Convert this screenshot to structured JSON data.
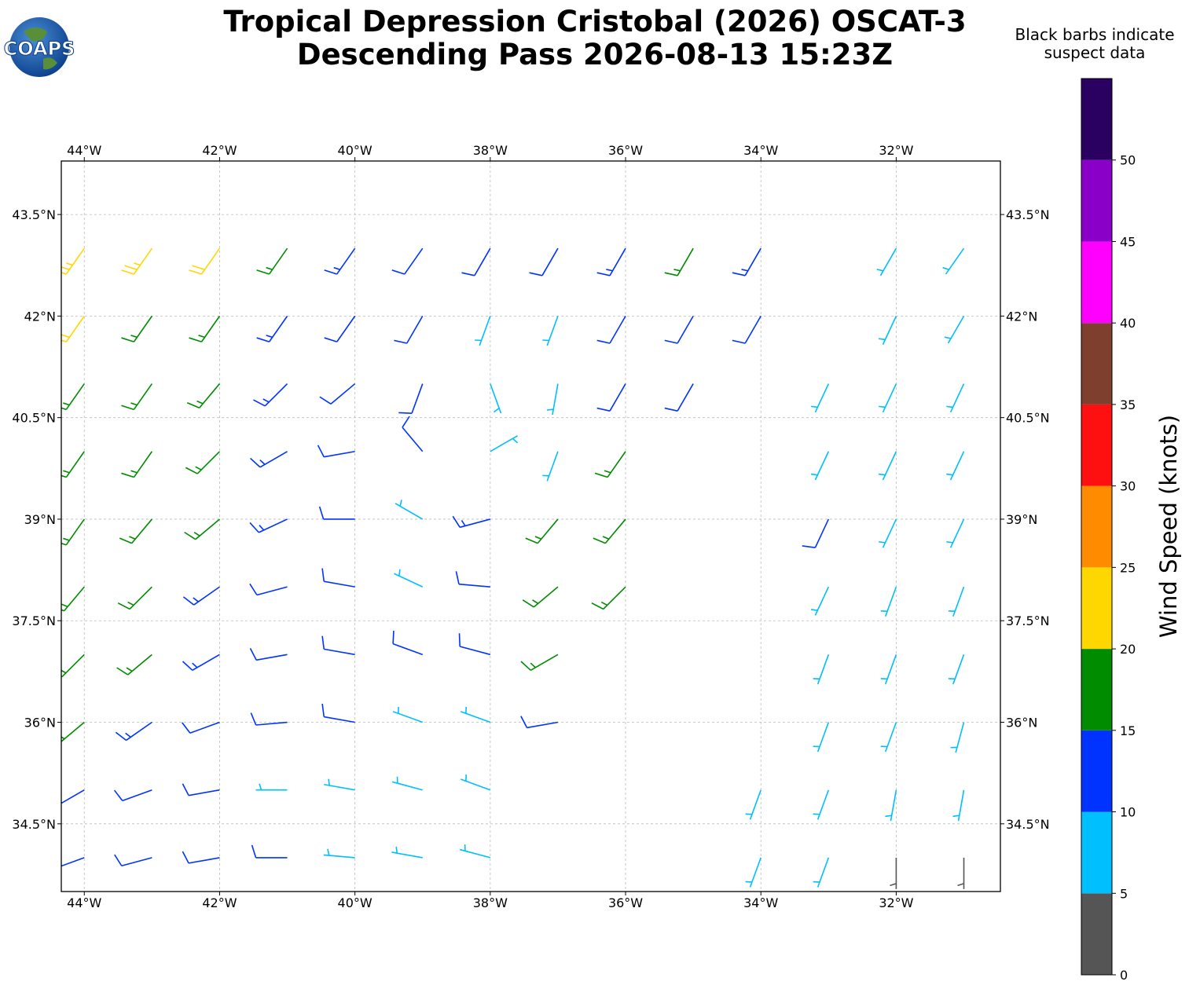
{
  "title_line1": "Tropical Depression Cristobal (2026) OSCAT-3",
  "title_line2": "Descending Pass 2026-08-13 15:23Z",
  "note_line1": "Black barbs indicate",
  "note_line2": "suspect data",
  "logo_text": "COAPS",
  "map": {
    "xlim": [
      -44.34,
      -30.46
    ],
    "ylim": [
      33.5,
      44.29
    ],
    "grid": true,
    "xticks": [
      {
        "value": -44,
        "label": "44°W"
      },
      {
        "value": -42,
        "label": "42°W"
      },
      {
        "value": -40,
        "label": "40°W"
      },
      {
        "value": -38,
        "label": "38°W"
      },
      {
        "value": -36,
        "label": "36°W"
      },
      {
        "value": -34,
        "label": "34°W"
      },
      {
        "value": -32,
        "label": "32°W"
      }
    ],
    "yticks": [
      {
        "value": 34.5,
        "label": "34.5°N"
      },
      {
        "value": 36,
        "label": "36°N"
      },
      {
        "value": 37.5,
        "label": "37.5°N"
      },
      {
        "value": 39,
        "label": "39°N"
      },
      {
        "value": 40.5,
        "label": "40.5°N"
      },
      {
        "value": 42,
        "label": "42°N"
      },
      {
        "value": 43.5,
        "label": "43.5°N"
      }
    ],
    "barbs": {
      "lon": [
        -44,
        -43,
        -42,
        -41,
        -40,
        -39,
        -38,
        -37,
        -36,
        -35,
        -34,
        -33,
        -32,
        -31
      ],
      "lat": [
        34,
        35,
        36,
        37,
        38,
        39,
        40,
        41,
        42,
        43
      ],
      "speed": [
        [
          12,
          12,
          11,
          10,
          9,
          8,
          7,
          null,
          null,
          null,
          8,
          7,
          4,
          4
        ],
        [
          13,
          12,
          11,
          9,
          8,
          8,
          8,
          null,
          null,
          null,
          8,
          7,
          7,
          6
        ],
        [
          17,
          14,
          12,
          11,
          10,
          9,
          9,
          10,
          null,
          null,
          null,
          7,
          7,
          7
        ],
        [
          18,
          16,
          14,
          12,
          12,
          11,
          11,
          17,
          null,
          null,
          null,
          8,
          8,
          7
        ],
        [
          19,
          17,
          14,
          12,
          10,
          9,
          12,
          17,
          16,
          null,
          null,
          9,
          8,
          7
        ],
        [
          19,
          17,
          15,
          13,
          11,
          9,
          14,
          17,
          18,
          null,
          null,
          11,
          8,
          7
        ],
        [
          18,
          17,
          15,
          13,
          12,
          10,
          8,
          9,
          17,
          null,
          null,
          9,
          8,
          7
        ],
        [
          18,
          16,
          15,
          13,
          12,
          10,
          5,
          8,
          12,
          12,
          null,
          8,
          8,
          7
        ],
        [
          22,
          18,
          16,
          13,
          12,
          11,
          9,
          8,
          11,
          12,
          11,
          null,
          6,
          6
        ],
        [
          23,
          24,
          21,
          18,
          13,
          12,
          12,
          12,
          14,
          17,
          13,
          null,
          9,
          8
        ]
      ],
      "direction": [
        [
          250,
          255,
          260,
          270,
          275,
          280,
          285,
          null,
          null,
          null,
          200,
          200,
          180,
          180
        ],
        [
          240,
          250,
          260,
          270,
          280,
          285,
          290,
          null,
          null,
          null,
          200,
          200,
          190,
          190
        ],
        [
          230,
          235,
          250,
          265,
          280,
          290,
          290,
          260,
          null,
          null,
          null,
          200,
          200,
          195
        ],
        [
          225,
          230,
          240,
          260,
          280,
          290,
          285,
          240,
          null,
          null,
          null,
          200,
          200,
          200
        ],
        [
          220,
          225,
          235,
          255,
          280,
          295,
          275,
          230,
          225,
          null,
          null,
          205,
          200,
          200
        ],
        [
          215,
          220,
          230,
          245,
          270,
          300,
          255,
          220,
          220,
          null,
          null,
          205,
          205,
          205
        ],
        [
          215,
          215,
          225,
          240,
          260,
          320,
          60,
          200,
          215,
          null,
          null,
          205,
          205,
          205
        ],
        [
          215,
          215,
          220,
          225,
          230,
          200,
          160,
          190,
          210,
          210,
          null,
          205,
          205,
          205
        ],
        [
          215,
          215,
          215,
          215,
          215,
          210,
          200,
          200,
          210,
          210,
          210,
          null,
          205,
          210
        ],
        [
          215,
          215,
          215,
          215,
          215,
          215,
          210,
          210,
          210,
          210,
          210,
          null,
          210,
          215
        ]
      ]
    }
  },
  "colorbar": {
    "label": "Wind Speed (knots)",
    "bounds": [
      0,
      5,
      10,
      15,
      20,
      25,
      30,
      35,
      40,
      45,
      50,
      55
    ],
    "colors": [
      "#555555",
      "#00bfff",
      "#0033ff",
      "#008c00",
      "#ffd700",
      "#ff8c00",
      "#ff1010",
      "#7f3f2f",
      "#ff00ff",
      "#8b00c8",
      "#2a0060"
    ],
    "ticks": [
      0,
      5,
      10,
      15,
      20,
      25,
      30,
      35,
      40,
      45,
      50
    ]
  }
}
